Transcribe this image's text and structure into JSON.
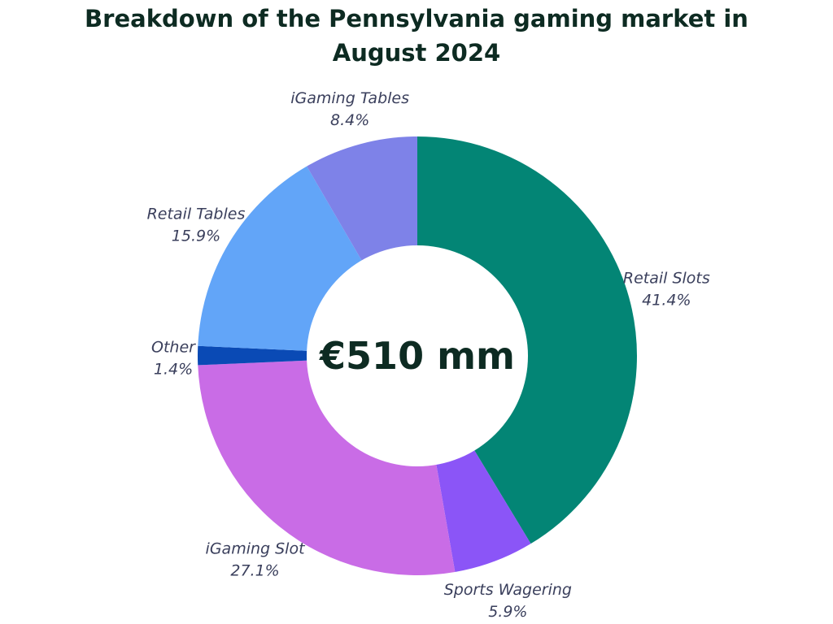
{
  "title_lines": [
    "Breakdown of the Pennsylvania gaming market in",
    "August 2024"
  ],
  "center_label": "€510 mm",
  "chart_data": {
    "type": "pie",
    "variant": "donut",
    "title": "Breakdown of the Pennsylvania gaming market in August 2024",
    "total_label": "€510 mm",
    "slices": [
      {
        "name": "Retail Slots",
        "value": 41.4,
        "label": "41.4%",
        "color": "#038575"
      },
      {
        "name": "Sports Wagering",
        "value": 5.9,
        "label": "5.9%",
        "color": "#8b55f7"
      },
      {
        "name": "iGaming Slot",
        "value": 27.1,
        "label": "27.1%",
        "color": "#c96ce6"
      },
      {
        "name": "Other",
        "value": 1.4,
        "label": "1.4%",
        "color": "#0a4ab5"
      },
      {
        "name": "Retail Tables",
        "value": 15.9,
        "label": "15.9%",
        "color": "#62a5f8"
      },
      {
        "name": "iGaming Tables",
        "value": 8.4,
        "label": "8.4%",
        "color": "#7e82e8"
      }
    ]
  }
}
